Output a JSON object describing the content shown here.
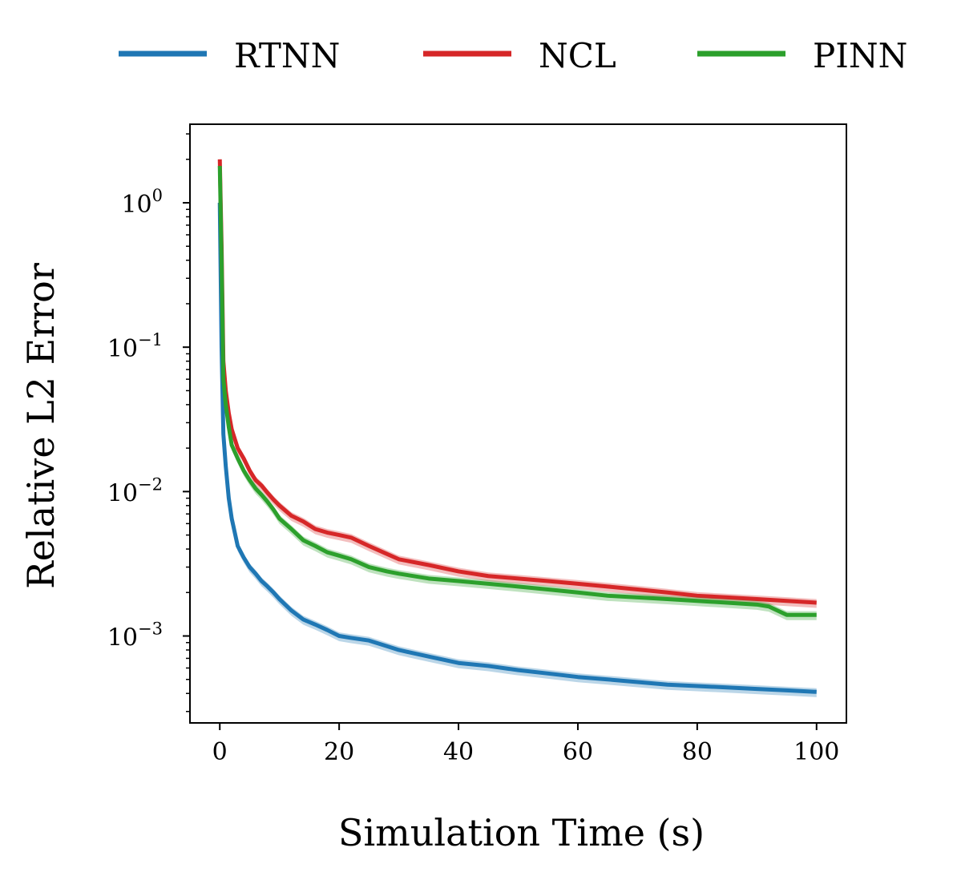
{
  "chart_data": {
    "type": "line",
    "title": "",
    "xlabel": "Simulation Time (s)",
    "ylabel": "Relative L2 Error",
    "xlim": [
      -5,
      105
    ],
    "ylim": [
      0.00025,
      3.5
    ],
    "yscale": "log",
    "grid": false,
    "legend_position": "top",
    "x_ticks": [
      0,
      20,
      40,
      60,
      80,
      100
    ],
    "x_tick_labels": [
      "0",
      "20",
      "40",
      "60",
      "80",
      "100"
    ],
    "y_ticks": [
      {
        "value": 1,
        "base": "10",
        "exp": "0"
      },
      {
        "value": 0.1,
        "base": "10",
        "exp": "−1"
      },
      {
        "value": 0.01,
        "base": "10",
        "exp": "−2"
      },
      {
        "value": 0.001,
        "base": "10",
        "exp": "−3"
      }
    ],
    "series": [
      {
        "name": "RTNN",
        "color": "#1f77b4",
        "x": [
          0,
          0.3,
          0.6,
          1,
          1.5,
          2,
          3,
          4,
          5,
          6,
          7,
          8,
          9,
          10,
          12,
          14,
          16,
          18,
          20,
          22,
          25,
          28,
          30,
          35,
          40,
          45,
          50,
          55,
          60,
          65,
          70,
          75,
          80,
          85,
          90,
          95,
          100
        ],
        "y": [
          1.0,
          0.1,
          0.025,
          0.015,
          0.009,
          0.0065,
          0.0042,
          0.0035,
          0.003,
          0.0027,
          0.0024,
          0.0022,
          0.002,
          0.0018,
          0.0015,
          0.0013,
          0.0012,
          0.0011,
          0.001,
          0.00097,
          0.00093,
          0.00085,
          0.0008,
          0.00072,
          0.00065,
          0.00062,
          0.00058,
          0.00055,
          0.00052,
          0.0005,
          0.00048,
          0.00046,
          0.00045,
          0.00044,
          0.00043,
          0.00042,
          0.00041
        ]
      },
      {
        "name": "NCL",
        "color": "#d62728",
        "x": [
          0,
          0.3,
          0.6,
          1,
          1.5,
          2,
          3,
          4,
          5,
          6,
          7,
          8,
          9,
          10,
          12,
          14,
          16,
          18,
          20,
          22,
          25,
          28,
          30,
          35,
          40,
          45,
          50,
          55,
          60,
          65,
          70,
          75,
          80,
          85,
          90,
          95,
          100
        ],
        "y": [
          2.0,
          0.5,
          0.08,
          0.05,
          0.035,
          0.027,
          0.02,
          0.017,
          0.014,
          0.012,
          0.011,
          0.0098,
          0.0088,
          0.008,
          0.0068,
          0.0062,
          0.0055,
          0.0052,
          0.005,
          0.0048,
          0.0042,
          0.0037,
          0.0034,
          0.0031,
          0.0028,
          0.0026,
          0.0025,
          0.0024,
          0.0023,
          0.0022,
          0.0021,
          0.002,
          0.0019,
          0.00185,
          0.0018,
          0.00175,
          0.0017
        ]
      },
      {
        "name": "PINN",
        "color": "#2ca02c",
        "x": [
          0,
          0.3,
          0.6,
          1,
          1.5,
          2,
          3,
          4,
          5,
          6,
          7,
          8,
          9,
          10,
          12,
          14,
          16,
          18,
          20,
          22,
          25,
          28,
          30,
          35,
          40,
          45,
          50,
          55,
          60,
          65,
          70,
          75,
          80,
          85,
          90,
          92,
          95,
          100
        ],
        "y": [
          1.8,
          0.4,
          0.06,
          0.04,
          0.028,
          0.021,
          0.017,
          0.014,
          0.012,
          0.0105,
          0.0095,
          0.0085,
          0.0075,
          0.0065,
          0.0055,
          0.0046,
          0.0042,
          0.0038,
          0.0036,
          0.0034,
          0.003,
          0.0028,
          0.0027,
          0.0025,
          0.0024,
          0.0023,
          0.0022,
          0.0021,
          0.002,
          0.0019,
          0.00185,
          0.0018,
          0.00175,
          0.0017,
          0.00165,
          0.0016,
          0.0014,
          0.0014
        ]
      }
    ]
  }
}
